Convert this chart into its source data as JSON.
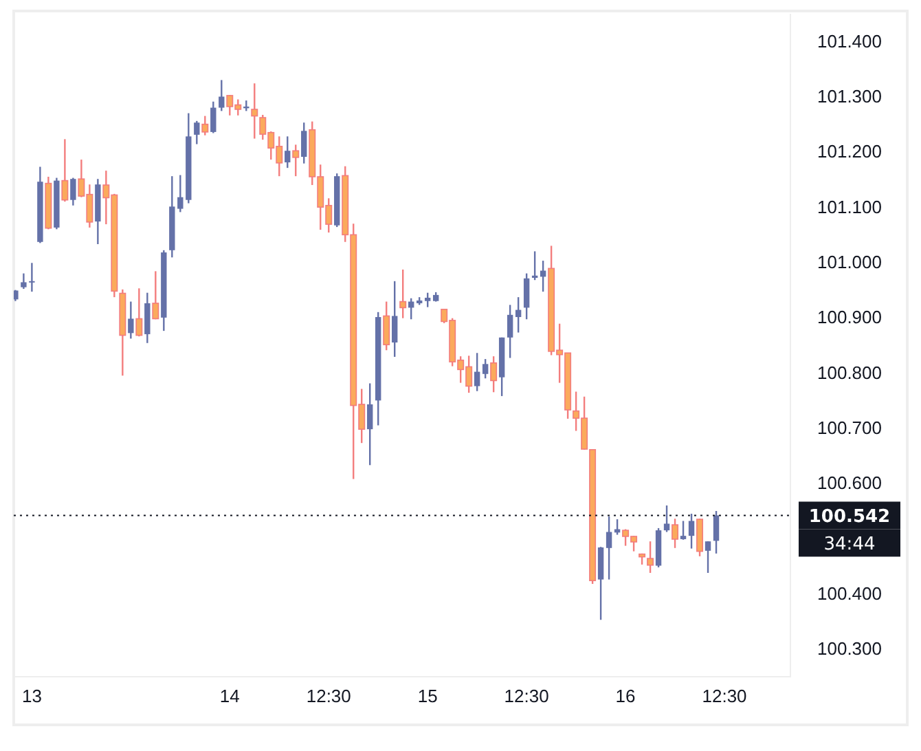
{
  "chart_data": {
    "type": "candlestick",
    "categories": [
      null,
      null,
      "13",
      null,
      null,
      null,
      null,
      null,
      null,
      null,
      null,
      null,
      null,
      null,
      null,
      null,
      null,
      null,
      null,
      null,
      null,
      null,
      null,
      null,
      null,
      null,
      "14",
      null,
      null,
      null,
      null,
      null,
      null,
      null,
      null,
      null,
      null,
      null,
      "12:30",
      null,
      null,
      null,
      null,
      null,
      null,
      null,
      null,
      null,
      null,
      null,
      "15",
      null,
      null,
      null,
      null,
      null,
      null,
      null,
      null,
      null,
      null,
      null,
      "12:30",
      null,
      null,
      null,
      null,
      null,
      null,
      null,
      null,
      null,
      null,
      null,
      "16",
      null,
      null,
      null,
      null,
      null,
      null,
      null,
      null,
      null,
      null,
      null,
      "12:30"
    ],
    "ohlc": [
      [
        100.933,
        100.95,
        100.93,
        100.949
      ],
      [
        100.955,
        100.98,
        100.952,
        100.964
      ],
      [
        100.964,
        100.999,
        100.947,
        100.966
      ],
      [
        101.037,
        101.173,
        101.035,
        101.146
      ],
      [
        101.143,
        101.155,
        101.06,
        101.062
      ],
      [
        101.063,
        101.153,
        101.06,
        101.148
      ],
      [
        101.148,
        101.223,
        101.11,
        101.113
      ],
      [
        101.113,
        101.153,
        101.103,
        101.151
      ],
      [
        101.151,
        101.186,
        101.118,
        101.12
      ],
      [
        101.123,
        101.141,
        101.063,
        101.073
      ],
      [
        101.074,
        101.151,
        101.033,
        101.141
      ],
      [
        101.14,
        101.166,
        101.069,
        101.117
      ],
      [
        101.122,
        101.124,
        100.937,
        100.948
      ],
      [
        100.944,
        100.951,
        100.795,
        100.868
      ],
      [
        100.872,
        100.929,
        100.862,
        100.898
      ],
      [
        100.898,
        100.953,
        100.866,
        100.868
      ],
      [
        100.87,
        100.945,
        100.854,
        100.926
      ],
      [
        100.926,
        100.984,
        100.897,
        100.898
      ],
      [
        100.9,
        101.022,
        100.876,
        101.018
      ],
      [
        101.022,
        101.156,
        101.009,
        101.101
      ],
      [
        101.097,
        101.158,
        101.091,
        101.118
      ],
      [
        101.113,
        101.27,
        101.107,
        101.228
      ],
      [
        101.231,
        101.256,
        101.214,
        101.253
      ],
      [
        101.25,
        101.265,
        101.23,
        101.236
      ],
      [
        101.236,
        101.291,
        101.234,
        101.28
      ],
      [
        101.28,
        101.33,
        101.274,
        101.3
      ],
      [
        101.302,
        101.303,
        101.266,
        101.282
      ],
      [
        101.285,
        101.295,
        101.266,
        101.277
      ],
      [
        101.279,
        101.293,
        101.274,
        101.282
      ],
      [
        101.277,
        101.324,
        101.224,
        101.265
      ],
      [
        101.262,
        101.267,
        101.222,
        101.232
      ],
      [
        101.235,
        101.237,
        101.186,
        101.207
      ],
      [
        101.21,
        101.228,
        101.156,
        101.18
      ],
      [
        101.181,
        101.228,
        101.171,
        101.202
      ],
      [
        101.202,
        101.213,
        101.156,
        101.19
      ],
      [
        101.191,
        101.253,
        101.179,
        101.238
      ],
      [
        101.24,
        101.255,
        101.14,
        101.155
      ],
      [
        101.155,
        101.177,
        101.059,
        101.1
      ],
      [
        101.103,
        101.116,
        101.054,
        101.069
      ],
      [
        101.067,
        101.161,
        101.064,
        101.156
      ],
      [
        101.157,
        101.174,
        101.037,
        101.05
      ],
      [
        101.05,
        101.07,
        100.608,
        100.741
      ],
      [
        100.743,
        100.771,
        100.673,
        100.698
      ],
      [
        100.698,
        100.781,
        100.633,
        100.743
      ],
      [
        100.75,
        100.91,
        100.705,
        100.901
      ],
      [
        100.903,
        100.929,
        100.841,
        100.851
      ],
      [
        100.855,
        100.966,
        100.829,
        100.903
      ],
      [
        100.929,
        100.987,
        100.899,
        100.918
      ],
      [
        100.918,
        100.935,
        100.897,
        100.929
      ],
      [
        100.926,
        100.937,
        100.923,
        100.931
      ],
      [
        100.93,
        100.945,
        100.919,
        100.936
      ],
      [
        100.93,
        100.946,
        100.929,
        100.941
      ],
      [
        100.915,
        100.916,
        100.89,
        100.893
      ],
      [
        100.895,
        100.899,
        100.812,
        100.82
      ],
      [
        100.823,
        100.83,
        100.782,
        100.806
      ],
      [
        100.811,
        100.831,
        100.764,
        100.776
      ],
      [
        100.776,
        100.836,
        100.767,
        100.802
      ],
      [
        100.798,
        100.825,
        100.79,
        100.816
      ],
      [
        100.818,
        100.83,
        100.765,
        100.786
      ],
      [
        100.792,
        100.864,
        100.758,
        100.864
      ],
      [
        100.864,
        100.923,
        100.827,
        100.905
      ],
      [
        100.901,
        100.937,
        100.873,
        100.914
      ],
      [
        100.918,
        100.98,
        100.897,
        100.971
      ],
      [
        100.972,
        101.02,
        100.968,
        100.976
      ],
      [
        100.974,
        101.003,
        100.947,
        100.985
      ],
      [
        100.989,
        101.03,
        100.832,
        100.839
      ],
      [
        100.841,
        100.889,
        100.782,
        100.833
      ],
      [
        100.836,
        100.836,
        100.717,
        100.733
      ],
      [
        100.731,
        100.766,
        100.695,
        100.718
      ],
      [
        100.718,
        100.757,
        100.661,
        100.662
      ],
      [
        100.661,
        100.662,
        100.418,
        100.424
      ],
      [
        100.426,
        100.485,
        100.353,
        100.484
      ],
      [
        100.483,
        100.54,
        100.426,
        100.512
      ],
      [
        100.511,
        100.535,
        100.507,
        100.517
      ],
      [
        100.515,
        100.517,
        100.487,
        100.504
      ],
      [
        100.504,
        100.505,
        100.477,
        100.494
      ],
      [
        100.472,
        100.473,
        100.453,
        100.467
      ],
      [
        100.464,
        100.495,
        100.438,
        100.452
      ],
      [
        100.451,
        100.519,
        100.448,
        100.515
      ],
      [
        100.515,
        100.56,
        100.512,
        100.527
      ],
      [
        100.525,
        100.536,
        100.483,
        100.499
      ],
      [
        100.499,
        100.532,
        100.498,
        100.505
      ],
      [
        100.505,
        100.545,
        100.482,
        100.532
      ],
      [
        100.535,
        100.536,
        100.468,
        100.477
      ],
      [
        100.478,
        100.495,
        100.438,
        100.495
      ],
      [
        100.496,
        100.55,
        100.473,
        100.542
      ],
      null
    ],
    "ylim": [
      100.25,
      101.45
    ],
    "yticks": [
      {
        "value": 100.3,
        "label": "100.300"
      },
      {
        "value": 100.4,
        "label": "100.400"
      },
      {
        "value": 100.6,
        "label": "100.600"
      },
      {
        "value": 100.7,
        "label": "100.700"
      },
      {
        "value": 100.8,
        "label": "100.800"
      },
      {
        "value": 100.9,
        "label": "100.900"
      },
      {
        "value": 101.0,
        "label": "101.000"
      },
      {
        "value": 101.1,
        "label": "101.100"
      },
      {
        "value": 101.2,
        "label": "101.200"
      },
      {
        "value": 101.3,
        "label": "101.300"
      },
      {
        "value": 101.4,
        "label": "101.400"
      }
    ],
    "ref_lines": [
      {
        "axis": "y",
        "value": 100.542,
        "label": "100.542",
        "color": "#131722",
        "line_style": "dotted"
      }
    ],
    "annotations": [
      "34:44"
    ],
    "grid": false
  }
}
